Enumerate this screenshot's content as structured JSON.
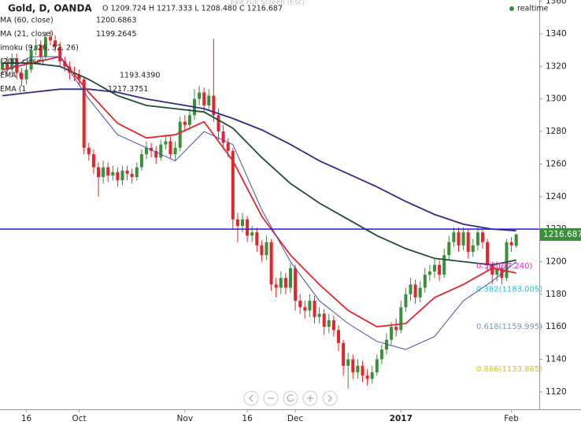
{
  "chart_data": {
    "type": "candlestick",
    "title": "Gold, D, OANDA",
    "ohlc_text": "O 1209.724 H 1217.333 L 1208.480 C 1216.687",
    "status": "realtime",
    "fullscreen_hint": "Exit Full Screen (Esc)",
    "legend": [
      {
        "name": "MA (60, close)",
        "value": "1200.6863"
      },
      {
        "name": "MA (21, close)",
        "value": "1199.2645"
      },
      {
        "name": "imoku (9, 26, 52, 26)",
        "value": ""
      },
      {
        "name": "(200, close)",
        "value": ""
      },
      {
        "name": "EMA (",
        "value": "1193.4390"
      },
      {
        "name": "EMA (1",
        "value": "1217.3751"
      }
    ],
    "categories": [
      null,
      null,
      null,
      null,
      null,
      "16",
      null,
      null,
      null,
      null,
      null,
      null,
      null,
      null,
      null,
      null,
      "Oct",
      null,
      null,
      null,
      null,
      null,
      null,
      null,
      null,
      null,
      null,
      null,
      null,
      null,
      null,
      null,
      null,
      null,
      null,
      null,
      null,
      null,
      "Nov",
      null,
      null,
      null,
      null,
      null,
      null,
      null,
      null,
      null,
      null,
      null,
      null,
      "16",
      null,
      null,
      null,
      null,
      null,
      null,
      null,
      null,
      null,
      "Dec",
      null,
      null,
      null,
      null,
      null,
      null,
      null,
      null,
      null,
      null,
      null,
      null,
      null,
      null,
      null,
      null,
      null,
      null,
      null,
      null,
      null,
      "2017",
      null,
      null,
      null,
      null,
      null,
      null,
      null,
      null,
      null,
      null,
      null,
      null,
      null,
      null,
      null,
      null,
      null,
      null,
      null,
      null,
      null,
      null,
      "Feb",
      null
    ],
    "open": [
      1318,
      1322,
      1318,
      1325,
      1316,
      1312,
      1318,
      1330,
      1333,
      1326,
      1338,
      1336,
      1332,
      1323,
      1320,
      1316,
      1315,
      1312,
      1270,
      1266,
      1258,
      1252,
      1258,
      1253,
      1255,
      1250,
      1256,
      1254,
      1252,
      1258,
      1266,
      1270,
      1268,
      1264,
      1272,
      1274,
      1266,
      1270,
      1286,
      1284,
      1290,
      1300,
      1304,
      1296,
      1302,
      1290,
      1280,
      1273,
      1268,
      1226,
      1222,
      1226,
      1216,
      1218,
      1210,
      1204,
      1212,
      1186,
      1184,
      1190,
      1184,
      1196,
      1176,
      1172,
      1170,
      1176,
      1166,
      1168,
      1160,
      1164,
      1158,
      1150,
      1136,
      1140,
      1132,
      1136,
      1130,
      1128,
      1132,
      1140,
      1146,
      1152,
      1160,
      1158,
      1172,
      1180,
      1186,
      1178,
      1184,
      1192,
      1194,
      1198,
      1192,
      1204,
      1212,
      1218,
      1210,
      1218,
      1206,
      1210,
      1218,
      1212,
      1198,
      1192,
      1196,
      1190,
      1212,
      1209.724
    ],
    "high": [
      1325,
      1326,
      1328,
      1328,
      1319,
      1321,
      1333,
      1337,
      1336,
      1341,
      1342,
      1339,
      1335,
      1326,
      1323,
      1320,
      1318,
      1314,
      1273,
      1269,
      1261,
      1262,
      1261,
      1259,
      1258,
      1259,
      1259,
      1257,
      1261,
      1269,
      1274,
      1273,
      1271,
      1275,
      1278,
      1277,
      1274,
      1289,
      1290,
      1294,
      1306,
      1308,
      1307,
      1306,
      1337,
      1294,
      1284,
      1276,
      1270,
      1230,
      1230,
      1228,
      1222,
      1221,
      1213,
      1216,
      1214,
      1190,
      1194,
      1193,
      1199,
      1198,
      1180,
      1176,
      1180,
      1179,
      1172,
      1171,
      1168,
      1167,
      1161,
      1152,
      1144,
      1143,
      1140,
      1139,
      1134,
      1136,
      1143,
      1149,
      1156,
      1163,
      1165,
      1176,
      1184,
      1190,
      1189,
      1188,
      1196,
      1198,
      1202,
      1201,
      1208,
      1216,
      1221,
      1221,
      1221,
      1220,
      1214,
      1221,
      1220,
      1214,
      1200,
      1200,
      1198,
      1214,
      1215,
      1217.333
    ],
    "low": [
      1315,
      1314,
      1315,
      1312,
      1308,
      1309,
      1316,
      1327,
      1323,
      1324,
      1333,
      1329,
      1320,
      1317,
      1312,
      1311,
      1308,
      1266,
      1262,
      1254,
      1240,
      1248,
      1249,
      1250,
      1246,
      1247,
      1250,
      1248,
      1250,
      1256,
      1263,
      1264,
      1260,
      1262,
      1269,
      1263,
      1262,
      1268,
      1280,
      1281,
      1287,
      1296,
      1292,
      1293,
      1286,
      1275,
      1269,
      1264,
      1220,
      1212,
      1218,
      1212,
      1212,
      1206,
      1200,
      1201,
      1182,
      1178,
      1180,
      1180,
      1181,
      1170,
      1168,
      1165,
      1166,
      1162,
      1162,
      1155,
      1156,
      1154,
      1145,
      1130,
      1122,
      1128,
      1128,
      1126,
      1124,
      1125,
      1130,
      1137,
      1143,
      1149,
      1154,
      1156,
      1169,
      1176,
      1174,
      1175,
      1181,
      1188,
      1190,
      1188,
      1190,
      1201,
      1209,
      1206,
      1207,
      1202,
      1203,
      1207,
      1208,
      1194,
      1186,
      1188,
      1186,
      1188,
      1206,
      1208.48
    ],
    "close": [
      1322,
      1318,
      1325,
      1316,
      1312,
      1318,
      1330,
      1333,
      1326,
      1338,
      1336,
      1332,
      1323,
      1320,
      1316,
      1315,
      1312,
      1270,
      1266,
      1258,
      1252,
      1258,
      1253,
      1255,
      1250,
      1256,
      1254,
      1252,
      1258,
      1266,
      1270,
      1268,
      1264,
      1272,
      1274,
      1266,
      1270,
      1286,
      1284,
      1290,
      1300,
      1304,
      1296,
      1302,
      1290,
      1280,
      1273,
      1268,
      1226,
      1222,
      1226,
      1216,
      1218,
      1210,
      1204,
      1212,
      1186,
      1184,
      1190,
      1184,
      1196,
      1176,
      1172,
      1170,
      1176,
      1166,
      1168,
      1160,
      1164,
      1158,
      1150,
      1136,
      1140,
      1132,
      1136,
      1130,
      1128,
      1132,
      1140,
      1146,
      1152,
      1160,
      1158,
      1172,
      1180,
      1186,
      1178,
      1184,
      1192,
      1194,
      1198,
      1192,
      1204,
      1212,
      1218,
      1210,
      1218,
      1206,
      1210,
      1218,
      1212,
      1198,
      1192,
      1196,
      1190,
      1212,
      1210,
      1216.687
    ],
    "up_color": "#3b8f3b",
    "down_color": "#e3262b",
    "lines": [
      {
        "color": "#2e2e8a",
        "width": 1.8,
        "x": [
          0,
          6,
          12,
          18,
          24,
          30,
          36,
          42,
          48,
          54,
          60,
          66,
          72,
          78,
          84,
          90,
          96,
          102,
          107
        ],
        "values": [
          1302,
          1304,
          1306,
          1306,
          1304,
          1300,
          1297,
          1294,
          1288,
          1281,
          1272,
          1262,
          1254,
          1246,
          1237,
          1229,
          1223,
          1220,
          1219
        ]
      },
      {
        "color": "#1f4d3a",
        "width": 1.8,
        "x": [
          0,
          6,
          12,
          18,
          24,
          30,
          36,
          42,
          48,
          54,
          60,
          66,
          72,
          78,
          84,
          90,
          96,
          102,
          107
        ],
        "values": [
          1322,
          1322,
          1320,
          1312,
          1302,
          1296,
          1294,
          1292,
          1282,
          1264,
          1248,
          1236,
          1226,
          1216,
          1208,
          1202,
          1200,
          1198,
          1201
        ]
      },
      {
        "color": "#e3262b",
        "width": 1.8,
        "x": [
          0,
          6,
          12,
          18,
          24,
          30,
          36,
          42,
          48,
          54,
          60,
          66,
          72,
          78,
          84,
          90,
          96,
          102,
          107
        ],
        "values": [
          1318,
          1322,
          1326,
          1304,
          1285,
          1276,
          1278,
          1286,
          1262,
          1228,
          1204,
          1186,
          1170,
          1160,
          1162,
          1178,
          1186,
          1196,
          1193
        ]
      },
      {
        "color": "#4a4ab0",
        "width": 1,
        "x": [
          0,
          6,
          12,
          18,
          24,
          30,
          36,
          42,
          48,
          54,
          60,
          66,
          72,
          78,
          84,
          90,
          96,
          102,
          107
        ],
        "values": [
          1316,
          1326,
          1326,
          1300,
          1278,
          1270,
          1262,
          1280,
          1272,
          1232,
          1200,
          1176,
          1162,
          1151,
          1146,
          1154,
          1176,
          1188,
          1200
        ]
      }
    ],
    "hline": {
      "value": 1220,
      "color": "#1f1fd6"
    },
    "fib": [
      {
        "label": "0.5(1197.240)",
        "value": 1197.24,
        "color": "#e020c8"
      },
      {
        "label": "0.382(1183.005)",
        "value": 1183.005,
        "color": "#10c8d8"
      },
      {
        "label": "0.618(1159.995)",
        "value": 1159.995,
        "color": "#6a9ad0"
      },
      {
        "label": "0.886(1133.865)",
        "value": 1133.865,
        "color": "#d8c800"
      }
    ],
    "ylim": [
      1109.3,
      1360.8
    ],
    "yticks": [
      1120,
      1140,
      1160,
      1180,
      1200,
      1220,
      1240,
      1260,
      1280,
      1300,
      1320,
      1340,
      1360
    ]
  }
}
